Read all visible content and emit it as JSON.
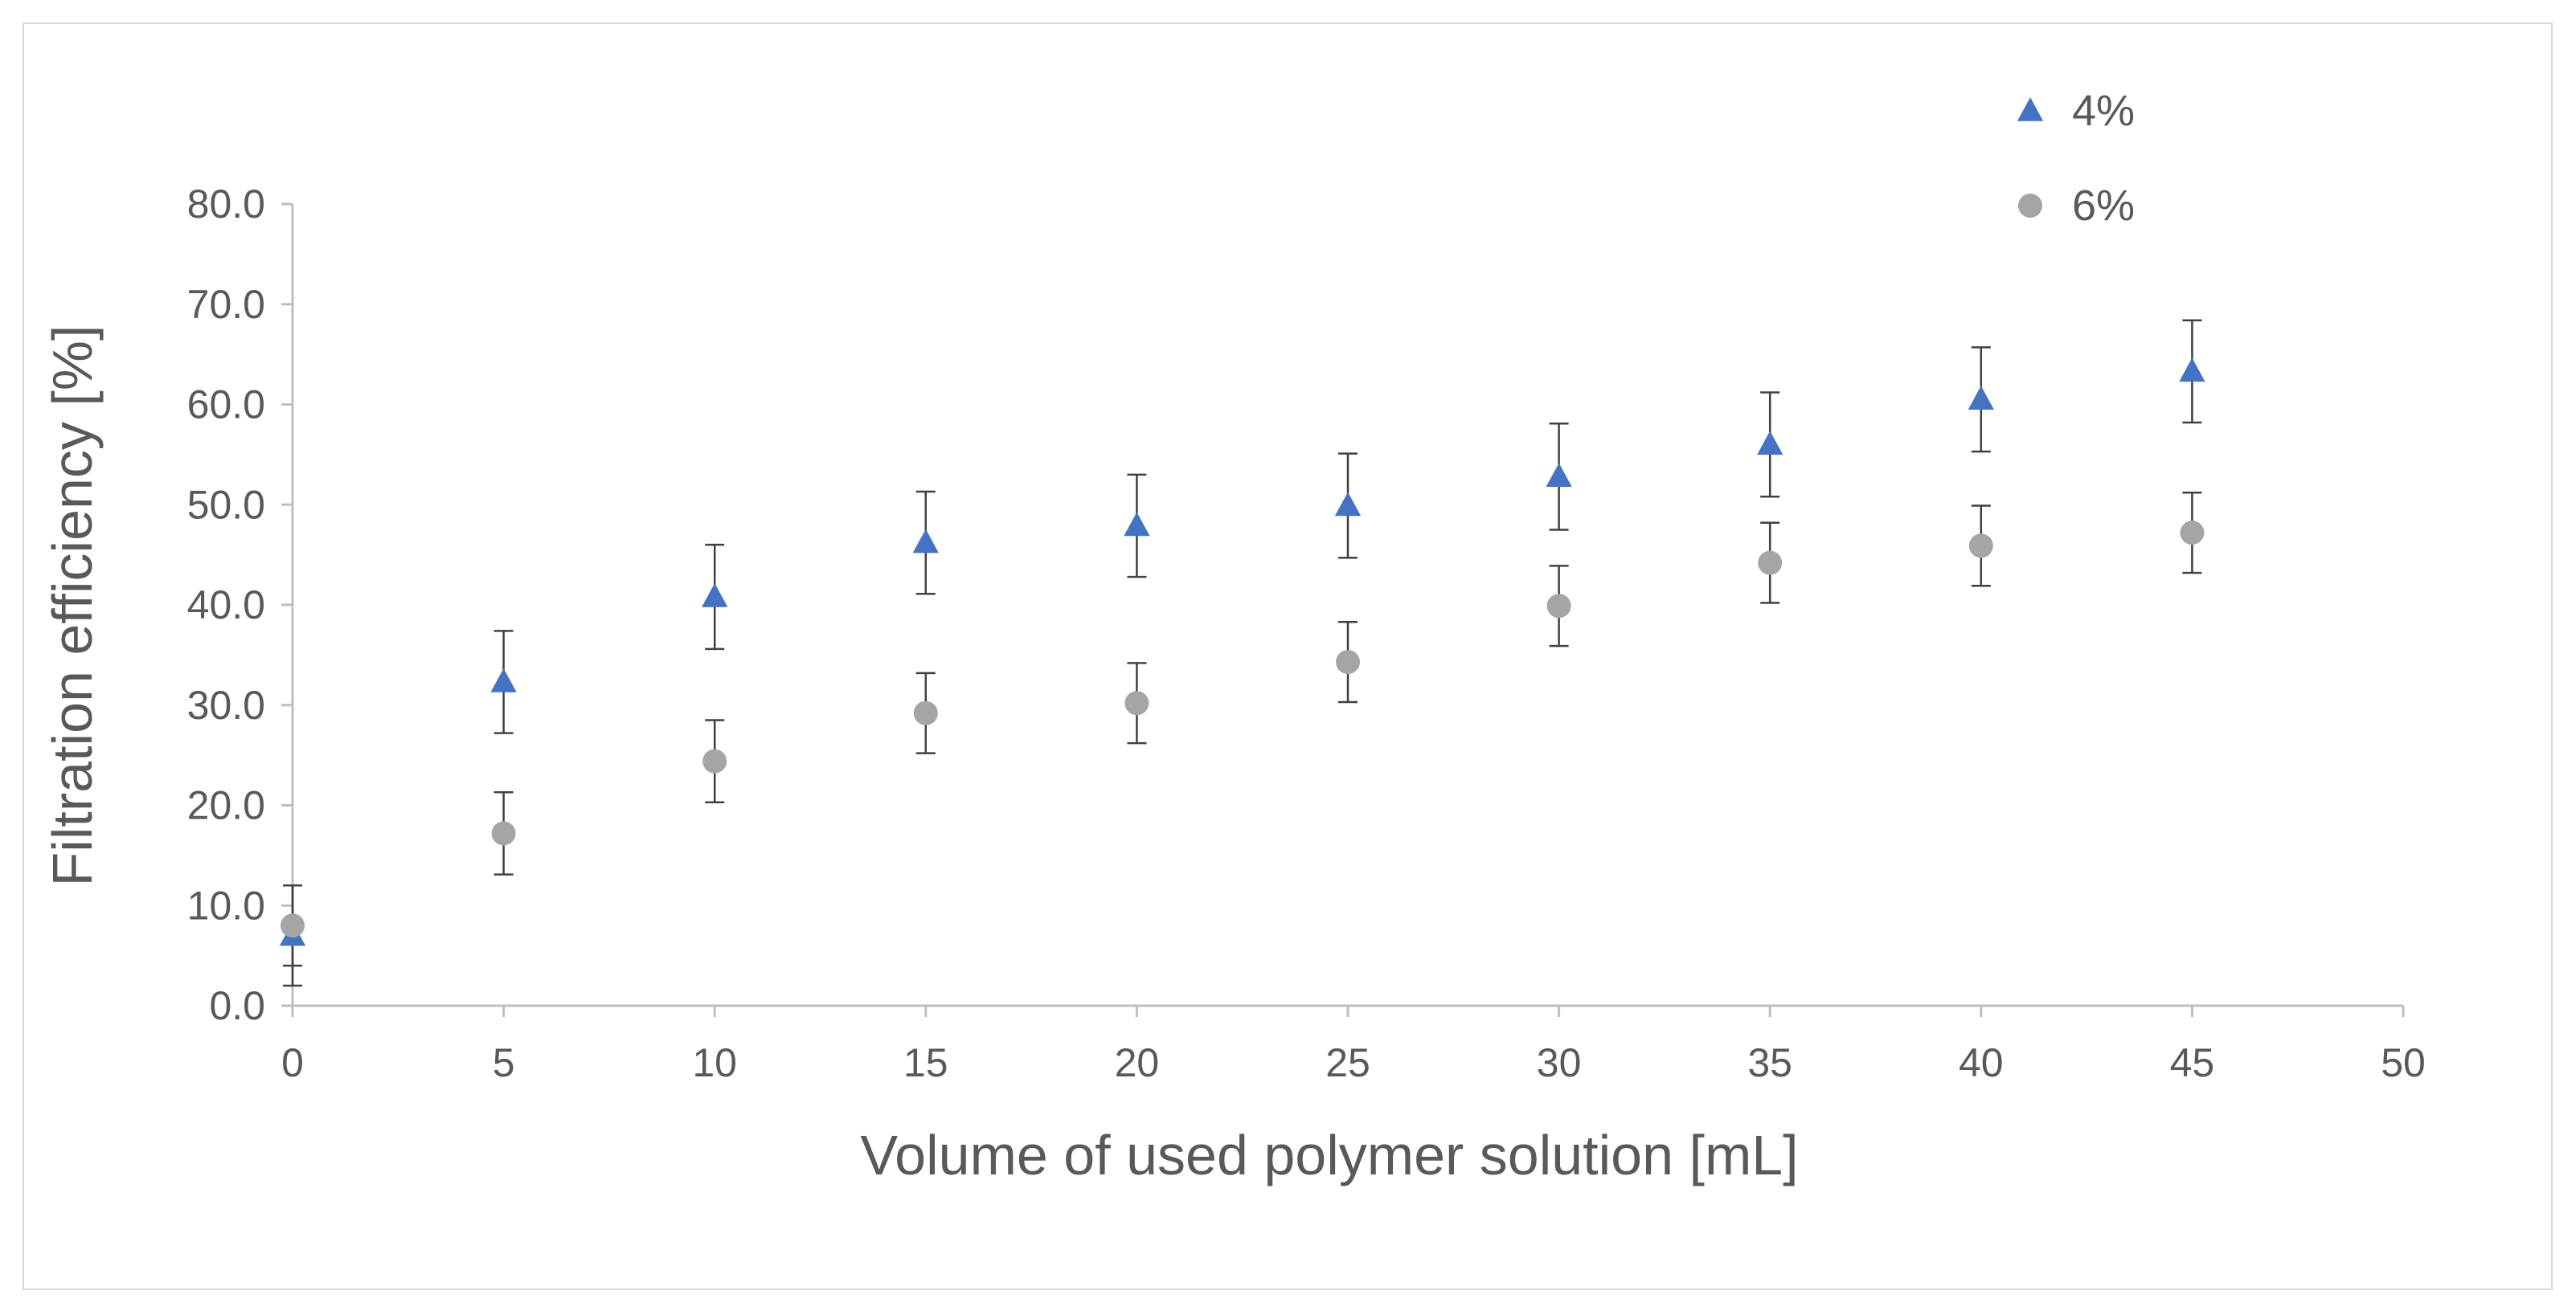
{
  "chart_data": {
    "type": "scatter",
    "xlabel": "Volume of used polymer solution [mL]",
    "ylabel": "Filtration efficiency [%]",
    "xlim": [
      0,
      50
    ],
    "ylim": [
      0,
      80
    ],
    "x_ticks": [
      "0",
      "5",
      "10",
      "15",
      "20",
      "25",
      "30",
      "35",
      "40",
      "45",
      "50"
    ],
    "y_ticks": [
      "0.0",
      "10.0",
      "20.0",
      "30.0",
      "40.0",
      "50.0",
      "60.0",
      "70.0",
      "80.0"
    ],
    "grid": false,
    "legend_position": "top-right",
    "series": [
      {
        "name": "4%",
        "marker": "triangle",
        "color": "#4472c4",
        "x": [
          0,
          5,
          10,
          15,
          20,
          25,
          30,
          35,
          40,
          45
        ],
        "y": [
          7.0,
          32.3,
          40.8,
          46.2,
          47.9,
          49.9,
          52.8,
          56.0,
          60.5,
          63.3
        ],
        "error": [
          5.0,
          5.1,
          5.2,
          5.1,
          5.1,
          5.2,
          5.3,
          5.2,
          5.2,
          5.1
        ]
      },
      {
        "name": "6%",
        "marker": "circle",
        "color": "#a5a5a5",
        "x": [
          0,
          5,
          10,
          15,
          20,
          25,
          30,
          35,
          40,
          45
        ],
        "y": [
          8.0,
          17.2,
          24.4,
          29.2,
          30.2,
          34.3,
          39.9,
          44.2,
          45.9,
          47.2
        ],
        "error": [
          4.0,
          4.1,
          4.1,
          4.0,
          4.0,
          4.0,
          4.0,
          4.0,
          4.0,
          4.0
        ]
      }
    ]
  }
}
